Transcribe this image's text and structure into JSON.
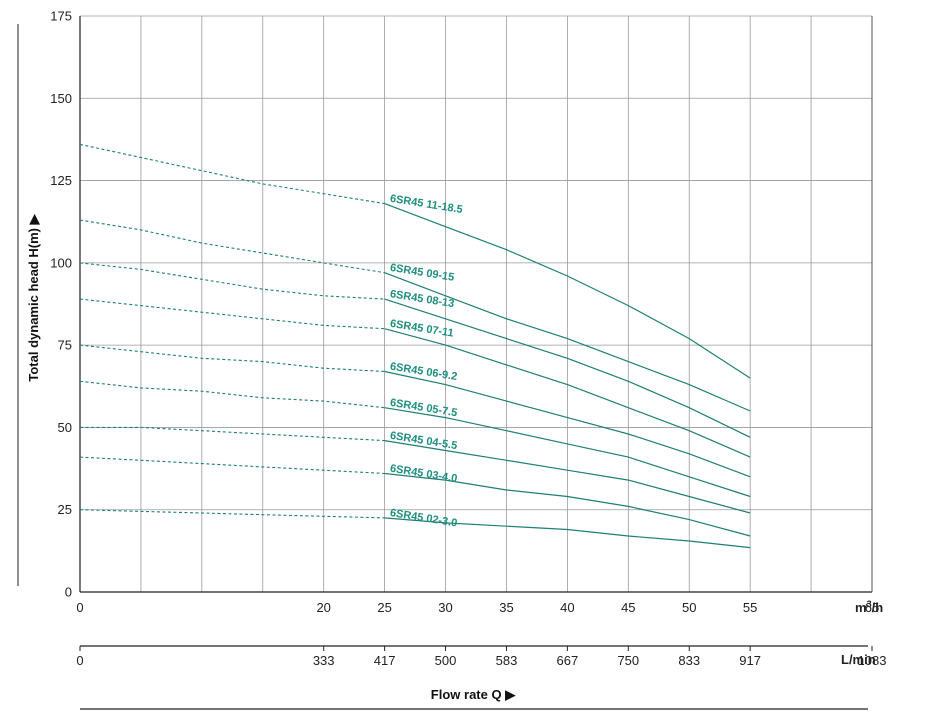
{
  "chart_data": {
    "type": "line",
    "ylabel": "Total dynamic head H(m) ▶",
    "xlabel": "Flow rate Q ▶",
    "x_unit_primary": "m³/h",
    "x_unit_secondary": "L/min",
    "xlim": [
      0,
      65
    ],
    "ylim": [
      0,
      175
    ],
    "x_ticks_primary": [
      0,
      20,
      25,
      30,
      35,
      40,
      45,
      50,
      55,
      65
    ],
    "x_ticks_secondary": [
      "0",
      "333",
      "417",
      "500",
      "583",
      "667",
      "750",
      "833",
      "917",
      "1083"
    ],
    "y_ticks": [
      0,
      25,
      50,
      75,
      100,
      125,
      150,
      175
    ],
    "grid": true,
    "legend": "none",
    "colors": {
      "curve": "#1e7f74",
      "label": "#1e8f80",
      "grid": "#9a9a9a"
    },
    "operating_range": [
      25,
      55
    ],
    "series": [
      {
        "name": "6SR45 11-18.5",
        "x": [
          0,
          5,
          10,
          15,
          20,
          25,
          30,
          35,
          40,
          45,
          50,
          55
        ],
        "y": [
          136,
          132,
          128,
          124,
          121,
          118,
          111,
          104,
          96,
          87,
          77,
          65
        ]
      },
      {
        "name": "6SR45 09-15",
        "x": [
          0,
          5,
          10,
          15,
          20,
          25,
          30,
          35,
          40,
          45,
          50,
          55
        ],
        "y": [
          113,
          110,
          106,
          103,
          100,
          97,
          90,
          83,
          77,
          70,
          63,
          55
        ]
      },
      {
        "name": "6SR45 08-13",
        "x": [
          0,
          5,
          10,
          15,
          20,
          25,
          30,
          35,
          40,
          45,
          50,
          55
        ],
        "y": [
          100,
          98,
          95,
          92,
          90,
          89,
          83,
          77,
          71,
          64,
          56,
          47
        ]
      },
      {
        "name": "6SR45 07-11",
        "x": [
          0,
          5,
          10,
          15,
          20,
          25,
          30,
          35,
          40,
          45,
          50,
          55
        ],
        "y": [
          89,
          87,
          85,
          83,
          81,
          80,
          75,
          69,
          63,
          56,
          49,
          41
        ]
      },
      {
        "name": "6SR45 06-9.2",
        "x": [
          0,
          5,
          10,
          15,
          20,
          25,
          30,
          35,
          40,
          45,
          50,
          55
        ],
        "y": [
          75,
          73,
          71,
          70,
          68,
          67,
          63,
          58,
          53,
          48,
          42,
          35
        ]
      },
      {
        "name": "6SR45 05-7.5",
        "x": [
          0,
          5,
          10,
          15,
          20,
          25,
          30,
          35,
          40,
          45,
          50,
          55
        ],
        "y": [
          64,
          62,
          61,
          59,
          58,
          56,
          53,
          49,
          45,
          41,
          35,
          29
        ]
      },
      {
        "name": "6SR45 04-5.5",
        "x": [
          0,
          5,
          10,
          15,
          20,
          25,
          30,
          35,
          40,
          45,
          50,
          55
        ],
        "y": [
          50,
          50,
          49,
          48,
          47,
          46,
          43,
          40,
          37,
          34,
          29,
          24
        ]
      },
      {
        "name": "6SR45 03-4.0",
        "x": [
          0,
          5,
          10,
          15,
          20,
          25,
          30,
          35,
          40,
          45,
          50,
          55
        ],
        "y": [
          41,
          40,
          39,
          38,
          37,
          36,
          34,
          31,
          29,
          26,
          22,
          17
        ]
      },
      {
        "name": "6SR45 02-3.0",
        "x": [
          0,
          5,
          10,
          15,
          20,
          25,
          30,
          35,
          40,
          45,
          50,
          55
        ],
        "y": [
          25,
          24.5,
          24,
          23.5,
          23,
          22.5,
          21,
          20,
          19,
          17,
          15.5,
          13.5
        ]
      }
    ]
  }
}
